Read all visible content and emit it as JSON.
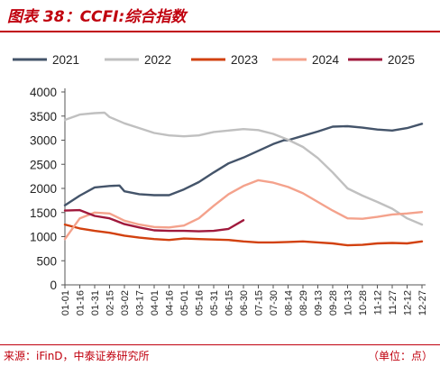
{
  "header": {
    "title": "图表 38：CCFI:综合指数"
  },
  "footer": {
    "source": "来源：iFinD，中泰证券研究所",
    "unit": "（单位：点）"
  },
  "chart_data": {
    "type": "line",
    "x_ticks": [
      "01-01",
      "01-16",
      "01-31",
      "02-15",
      "03-02",
      "03-17",
      "04-01",
      "04-16",
      "05-01",
      "05-16",
      "05-31",
      "06-15",
      "06-30",
      "07-15",
      "07-30",
      "08-14",
      "08-29",
      "09-13",
      "09-28",
      "10-13",
      "10-28",
      "11-12",
      "11-27",
      "12-12",
      "12-27"
    ],
    "y_ticks": [
      0,
      500,
      1000,
      1500,
      2000,
      2500,
      3000,
      3500,
      4000
    ],
    "ylim": [
      0,
      4000
    ],
    "legend_position": "top",
    "grid": false,
    "series": [
      {
        "name": "2021",
        "color": "#44546a",
        "points": [
          [
            "01-01",
            1650
          ],
          [
            "01-16",
            1850
          ],
          [
            "01-31",
            2020
          ],
          [
            "02-15",
            2050
          ],
          [
            "02-25",
            2060
          ],
          [
            "03-02",
            1940
          ],
          [
            "03-17",
            1880
          ],
          [
            "04-01",
            1860
          ],
          [
            "04-16",
            1860
          ],
          [
            "05-01",
            1980
          ],
          [
            "05-16",
            2130
          ],
          [
            "05-31",
            2330
          ],
          [
            "06-15",
            2520
          ],
          [
            "06-30",
            2640
          ],
          [
            "07-15",
            2780
          ],
          [
            "07-30",
            2920
          ],
          [
            "08-10",
            3000
          ],
          [
            "08-14",
            3000
          ],
          [
            "08-29",
            3090
          ],
          [
            "09-13",
            3180
          ],
          [
            "09-28",
            3280
          ],
          [
            "10-13",
            3290
          ],
          [
            "10-28",
            3260
          ],
          [
            "11-12",
            3220
          ],
          [
            "11-27",
            3200
          ],
          [
            "12-12",
            3250
          ],
          [
            "12-27",
            3340
          ]
        ]
      },
      {
        "name": "2022",
        "color": "#c0c0c0",
        "points": [
          [
            "01-01",
            3420
          ],
          [
            "01-16",
            3530
          ],
          [
            "01-31",
            3560
          ],
          [
            "02-10",
            3570
          ],
          [
            "02-15",
            3480
          ],
          [
            "03-02",
            3350
          ],
          [
            "03-17",
            3250
          ],
          [
            "04-01",
            3150
          ],
          [
            "04-16",
            3100
          ],
          [
            "05-01",
            3080
          ],
          [
            "05-16",
            3100
          ],
          [
            "05-31",
            3170
          ],
          [
            "06-15",
            3200
          ],
          [
            "06-30",
            3230
          ],
          [
            "07-15",
            3210
          ],
          [
            "07-30",
            3130
          ],
          [
            "08-14",
            3010
          ],
          [
            "08-29",
            2860
          ],
          [
            "09-13",
            2630
          ],
          [
            "09-28",
            2330
          ],
          [
            "10-13",
            2000
          ],
          [
            "10-28",
            1850
          ],
          [
            "11-12",
            1720
          ],
          [
            "11-27",
            1580
          ],
          [
            "12-12",
            1380
          ],
          [
            "12-27",
            1250
          ]
        ]
      },
      {
        "name": "2023",
        "color": "#d2410f",
        "points": [
          [
            "01-01",
            1250
          ],
          [
            "01-16",
            1170
          ],
          [
            "01-31",
            1120
          ],
          [
            "02-15",
            1080
          ],
          [
            "03-02",
            1020
          ],
          [
            "03-17",
            980
          ],
          [
            "04-01",
            950
          ],
          [
            "04-16",
            930
          ],
          [
            "05-01",
            960
          ],
          [
            "05-16",
            950
          ],
          [
            "05-31",
            940
          ],
          [
            "06-15",
            930
          ],
          [
            "06-30",
            900
          ],
          [
            "07-15",
            880
          ],
          [
            "07-30",
            880
          ],
          [
            "08-14",
            890
          ],
          [
            "08-29",
            900
          ],
          [
            "09-13",
            880
          ],
          [
            "09-28",
            860
          ],
          [
            "10-13",
            820
          ],
          [
            "10-28",
            830
          ],
          [
            "11-12",
            860
          ],
          [
            "11-27",
            870
          ],
          [
            "12-12",
            860
          ],
          [
            "12-27",
            900
          ]
        ]
      },
      {
        "name": "2024",
        "color": "#f4a28c",
        "points": [
          [
            "01-01",
            950
          ],
          [
            "01-16",
            1380
          ],
          [
            "01-31",
            1500
          ],
          [
            "02-15",
            1480
          ],
          [
            "03-02",
            1330
          ],
          [
            "03-17",
            1250
          ],
          [
            "04-01",
            1200
          ],
          [
            "04-16",
            1190
          ],
          [
            "05-01",
            1230
          ],
          [
            "05-16",
            1380
          ],
          [
            "05-31",
            1640
          ],
          [
            "06-15",
            1880
          ],
          [
            "06-30",
            2050
          ],
          [
            "07-15",
            2170
          ],
          [
            "07-30",
            2120
          ],
          [
            "08-14",
            2030
          ],
          [
            "08-29",
            1900
          ],
          [
            "09-13",
            1720
          ],
          [
            "09-28",
            1540
          ],
          [
            "10-13",
            1380
          ],
          [
            "10-28",
            1370
          ],
          [
            "11-12",
            1410
          ],
          [
            "11-27",
            1460
          ],
          [
            "12-12",
            1480
          ],
          [
            "12-27",
            1510
          ]
        ]
      },
      {
        "name": "2025",
        "color": "#a0193c",
        "points": [
          [
            "01-01",
            1540
          ],
          [
            "01-16",
            1550
          ],
          [
            "01-31",
            1430
          ],
          [
            "02-15",
            1380
          ],
          [
            "03-02",
            1260
          ],
          [
            "03-17",
            1190
          ],
          [
            "04-01",
            1130
          ],
          [
            "04-16",
            1120
          ],
          [
            "05-01",
            1120
          ],
          [
            "05-16",
            1110
          ],
          [
            "05-31",
            1120
          ],
          [
            "06-15",
            1160
          ],
          [
            "06-30",
            1340
          ]
        ]
      }
    ]
  }
}
